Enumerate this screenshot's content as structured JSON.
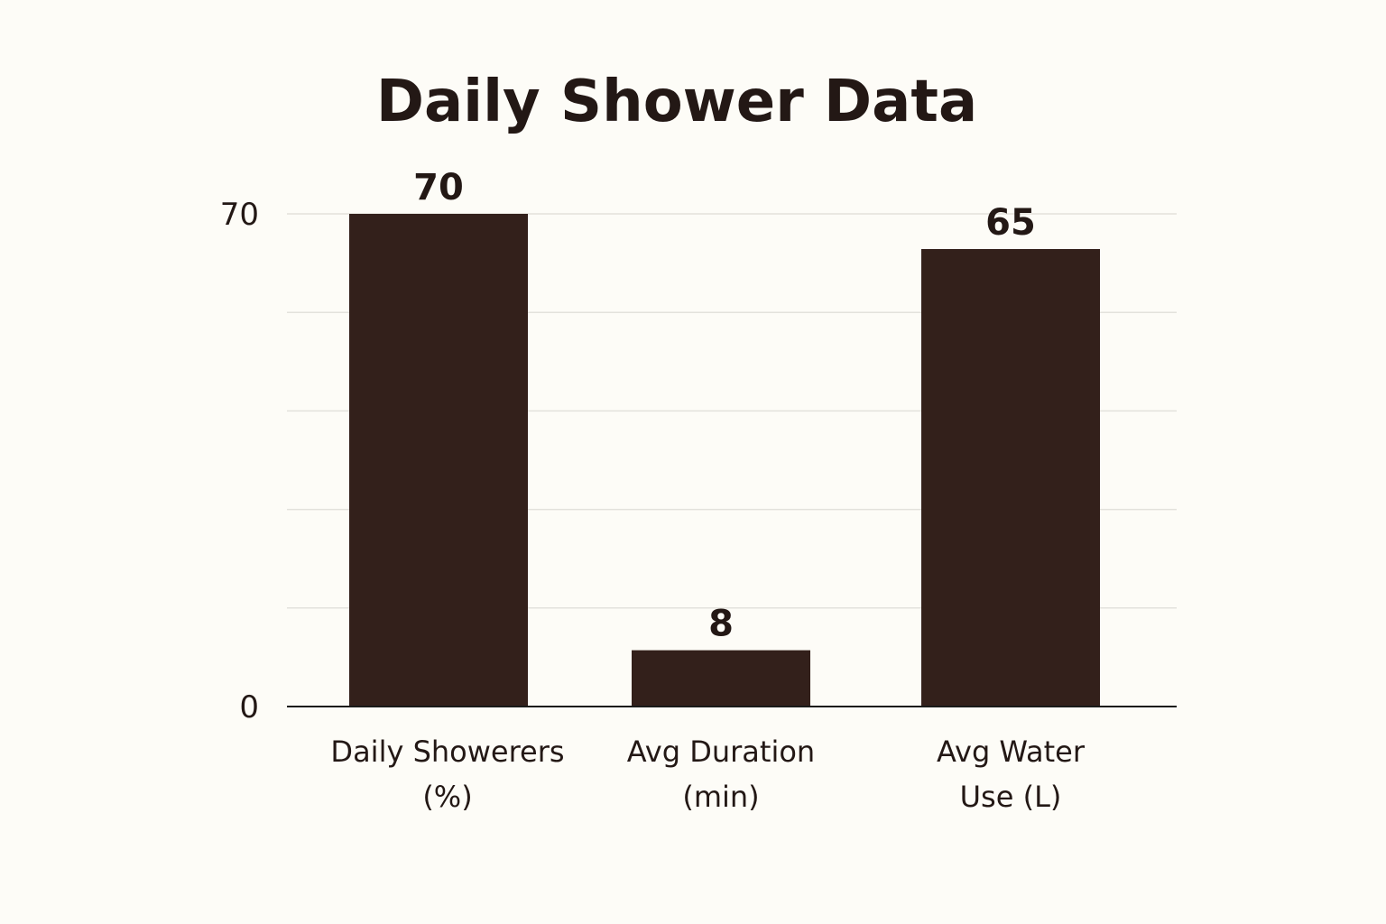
{
  "chart_data": {
    "type": "bar",
    "title": "Daily Shower Data",
    "xlabel": "",
    "ylabel": "",
    "categories": [
      [
        "Daily Showerers",
        "(%)"
      ],
      [
        "Avg Duration",
        "(min)"
      ],
      [
        "Avg Water",
        "Use (L)"
      ]
    ],
    "values": [
      70,
      8,
      65
    ],
    "value_labels": [
      "70",
      "8",
      "65"
    ],
    "ylim": [
      0,
      70
    ],
    "yticks": [
      0,
      70
    ],
    "ytick_labels": [
      "0",
      "70"
    ],
    "grid": true,
    "grid_step": 14,
    "legend": "none"
  },
  "colors": {
    "background": "#fdfcf7",
    "bar": "#33201b",
    "text": "#231815",
    "grid": "#e3e2dc",
    "axis": "#1a1a1a"
  }
}
